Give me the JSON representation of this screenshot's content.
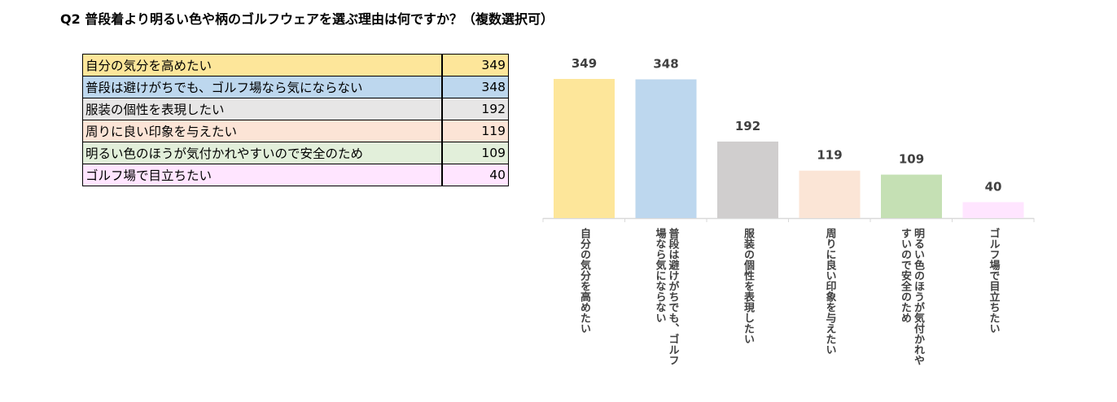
{
  "title": "Q2 普段着より明るい色や柄のゴルフウェアを選ぶ理由は何ですか？（複数選択可）",
  "table": {
    "rows": [
      {
        "label": "自分の気分を高めたい",
        "value": "349",
        "color": "#fde69a"
      },
      {
        "label": "普段は避けがちでも、ゴルフ場なら気にならない",
        "value": "348",
        "color": "#bdd7ee"
      },
      {
        "label": "服装の個性を表現したい",
        "value": "192",
        "color": "#e7e6e6"
      },
      {
        "label": "周りに良い印象を与えたい",
        "value": "119",
        "color": "#fce4d6"
      },
      {
        "label": "明るい色のほうが気付かれやすいので安全のため",
        "value": "109",
        "color": "#e2efda"
      },
      {
        "label": "ゴルフ場で目立ちたい",
        "value": "40",
        "color": "#ffe5ff"
      }
    ]
  },
  "chart_data": {
    "type": "bar",
    "categories": [
      "自分の気分を高めたい",
      "普段は避けがちでも、ゴルフ場なら気にならない",
      "服装の個性を表現したい",
      "周りに良い印象を与えたい",
      "明るい色のほうが気付かれやすいので安全のため",
      "ゴルフ場で目立ちたい"
    ],
    "category_lines": [
      [
        "自分の気分を高めたい"
      ],
      [
        "普段は避けがちでも、ゴルフ",
        "場なら気にならない"
      ],
      [
        "服装の個性を表現したい"
      ],
      [
        "周りに良い印象を与えたい"
      ],
      [
        "明るい色のほうが気付かれや",
        "すいので安全のため"
      ],
      [
        "ゴルフ場で目立ちたい"
      ]
    ],
    "values": [
      349,
      348,
      192,
      119,
      109,
      40
    ],
    "colors": [
      "#fde69a",
      "#bdd7ee",
      "#d0cece",
      "#fbe5d6",
      "#c5e0b4",
      "#ffe5ff"
    ],
    "ylim": [
      0,
      349
    ],
    "grid": false,
    "data_labels": true,
    "axis_color": "#d9d9d9"
  }
}
